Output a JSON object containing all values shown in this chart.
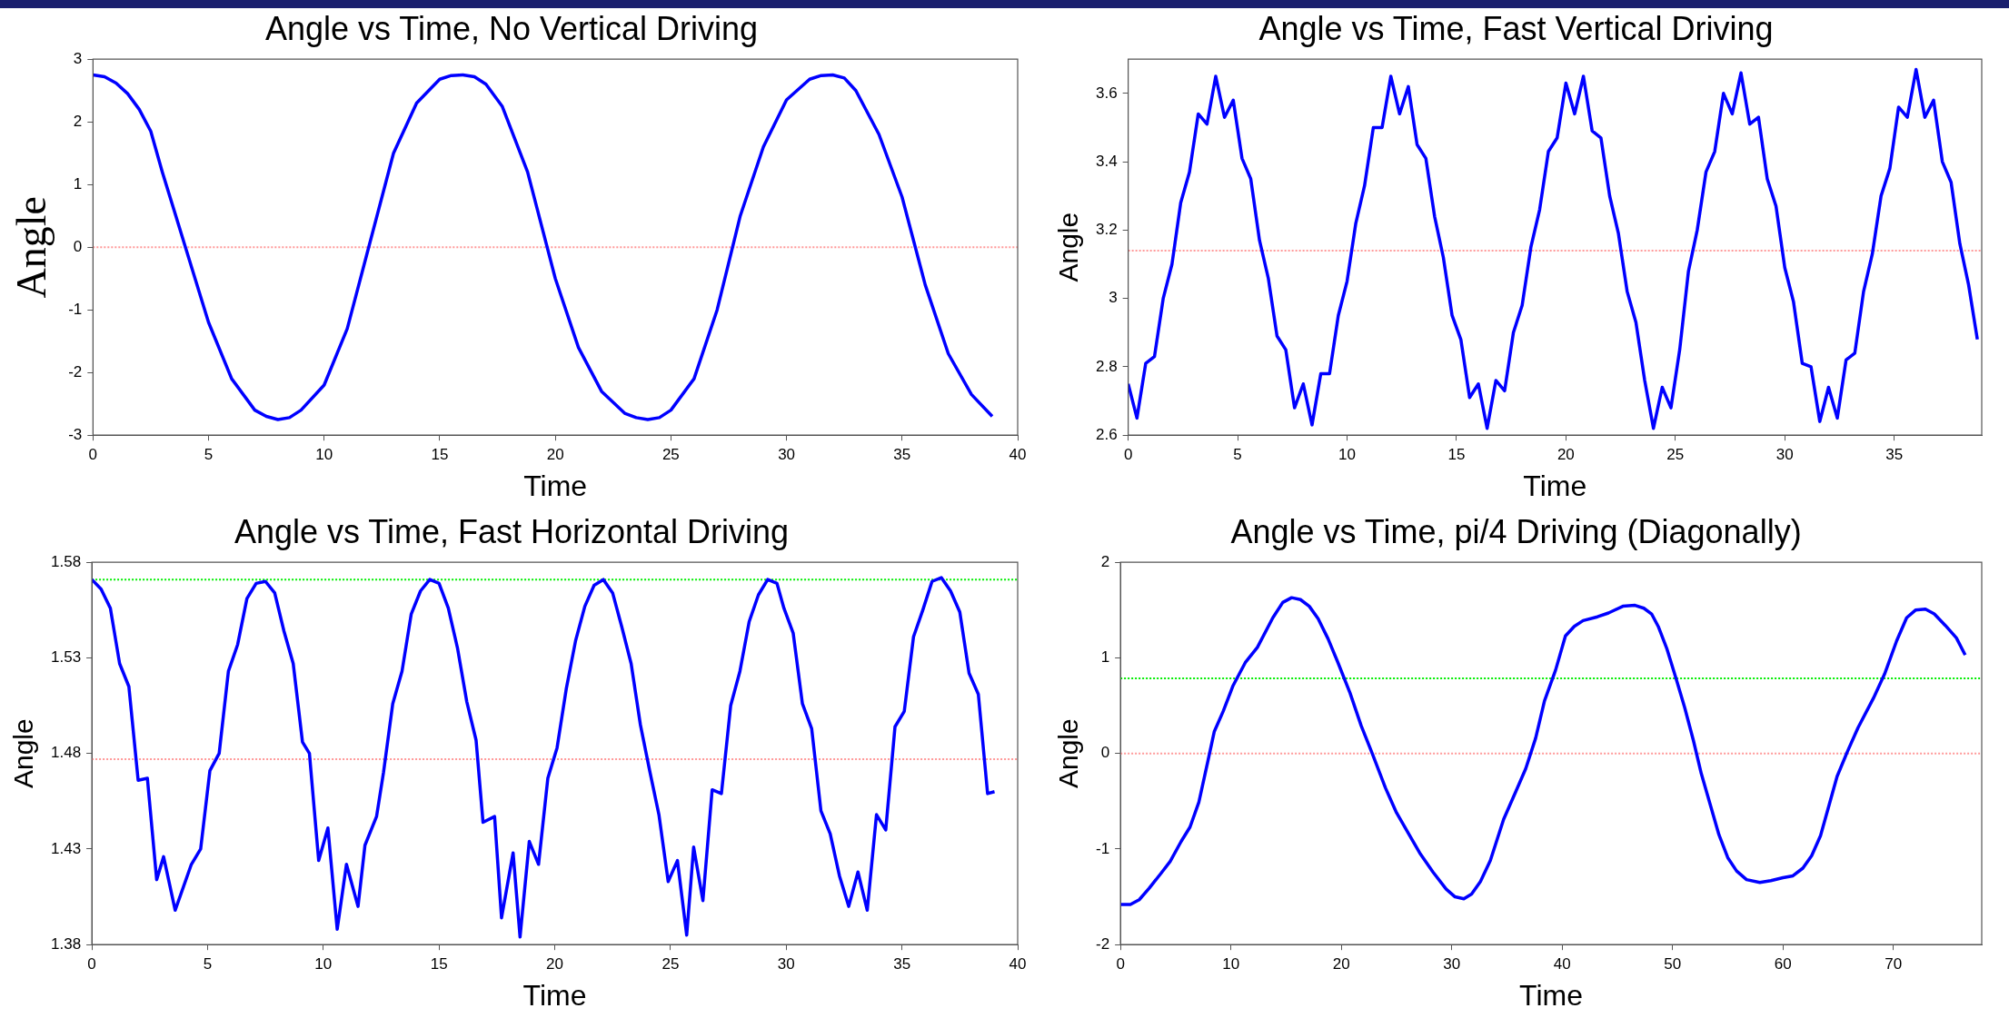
{
  "chart_data": [
    {
      "type": "line",
      "title": "Angle vs Time, No Vertical Driving",
      "xlabel": "Time",
      "ylabel": "Angle",
      "xlim": [
        0,
        40
      ],
      "ylim": [
        -3,
        3
      ],
      "xticks": [
        0,
        5,
        10,
        15,
        20,
        25,
        30,
        35,
        40
      ],
      "yticks": [
        -3,
        -2,
        -1,
        0,
        1,
        2,
        3
      ],
      "x": [
        0,
        0.5,
        1,
        1.5,
        2,
        2.5,
        3,
        3.5,
        4,
        5,
        6,
        7,
        7.5,
        8,
        8.5,
        9,
        10,
        11,
        12,
        13,
        14,
        15,
        15.5,
        16,
        16.5,
        17,
        17.7,
        18.8,
        20,
        21,
        22,
        23,
        23.5,
        24,
        24.5,
        25,
        26,
        27,
        28,
        29,
        30,
        31,
        31.5,
        32,
        32.5,
        33,
        34,
        35,
        36,
        37,
        38,
        38.9
      ],
      "series": [
        {
          "color": "#0000ff",
          "values": [
            2.75,
            2.72,
            2.62,
            2.45,
            2.2,
            1.85,
            1.2,
            0.6,
            0.0,
            -1.2,
            -2.1,
            -2.6,
            -2.7,
            -2.75,
            -2.72,
            -2.6,
            -2.2,
            -1.3,
            0.1,
            1.5,
            2.3,
            2.68,
            2.74,
            2.75,
            2.72,
            2.6,
            2.25,
            1.2,
            -0.5,
            -1.6,
            -2.3,
            -2.65,
            -2.72,
            -2.75,
            -2.72,
            -2.6,
            -2.1,
            -1.0,
            0.5,
            1.6,
            2.35,
            2.68,
            2.74,
            2.75,
            2.7,
            2.5,
            1.8,
            0.8,
            -0.6,
            -1.7,
            -2.35,
            -2.7
          ]
        }
      ],
      "ref_lines": [
        {
          "axis": "y",
          "value": 0,
          "color": "#ff9999",
          "line_style": "dotted"
        }
      ]
    },
    {
      "type": "line",
      "title": "Angle vs Time, Fast Vertical Driving",
      "xlabel": "Time",
      "ylabel": "Angle",
      "xlim": [
        0,
        39
      ],
      "ylim": [
        2.6,
        3.7
      ],
      "xticks": [
        0,
        5,
        10,
        15,
        20,
        25,
        30,
        35
      ],
      "yticks": [
        2.6,
        2.8,
        3,
        3.2,
        3.4,
        3.6
      ],
      "x": [
        0,
        0.4,
        0.8,
        1.2,
        1.6,
        2,
        2.4,
        2.8,
        3.2,
        3.6,
        4,
        4.4,
        4.8,
        5.2,
        5.6,
        6,
        6.4,
        6.8,
        7.2,
        7.6,
        8,
        8.4,
        8.8,
        9.2,
        9.6,
        10,
        10.4,
        10.8,
        11.2,
        11.6,
        12,
        12.4,
        12.8,
        13.2,
        13.6,
        14,
        14.4,
        14.8,
        15.2,
        15.6,
        16,
        16.4,
        16.8,
        17.2,
        17.6,
        18,
        18.4,
        18.8,
        19.2,
        19.6,
        20,
        20.4,
        20.8,
        21.2,
        21.6,
        22,
        22.4,
        22.8,
        23.2,
        23.6,
        24,
        24.4,
        24.8,
        25.2,
        25.6,
        26,
        26.4,
        26.8,
        27.2,
        27.6,
        28,
        28.4,
        28.8,
        29.2,
        29.6,
        30,
        30.4,
        30.8,
        31.2,
        31.6,
        32,
        32.4,
        32.8,
        33.2,
        33.6,
        34,
        34.4,
        34.8,
        35.2,
        35.6,
        36,
        36.4,
        36.8,
        37.2,
        37.6,
        38,
        38.4,
        38.8
      ],
      "series": [
        {
          "color": "#0000ff",
          "values": [
            2.75,
            2.65,
            2.81,
            2.83,
            3.0,
            3.1,
            3.28,
            3.37,
            3.54,
            3.51,
            3.65,
            3.53,
            3.58,
            3.41,
            3.35,
            3.17,
            3.06,
            2.89,
            2.85,
            2.68,
            2.75,
            2.63,
            2.78,
            2.78,
            2.95,
            3.05,
            3.22,
            3.33,
            3.5,
            3.5,
            3.65,
            3.54,
            3.62,
            3.45,
            3.41,
            3.24,
            3.12,
            2.95,
            2.88,
            2.71,
            2.75,
            2.62,
            2.76,
            2.73,
            2.9,
            2.98,
            3.15,
            3.26,
            3.43,
            3.47,
            3.63,
            3.54,
            3.65,
            3.49,
            3.47,
            3.3,
            3.19,
            3.02,
            2.93,
            2.76,
            2.62,
            2.74,
            2.68,
            2.85,
            3.08,
            3.2,
            3.37,
            3.43,
            3.6,
            3.54,
            3.66,
            3.51,
            3.53,
            3.35,
            3.27,
            3.09,
            2.99,
            2.81,
            2.8,
            2.64,
            2.74,
            2.65,
            2.82,
            2.84,
            3.02,
            3.13,
            3.3,
            3.38,
            3.56,
            3.53,
            3.67,
            3.53,
            3.58,
            3.4,
            3.34,
            3.16,
            3.04,
            2.88
          ]
        }
      ],
      "ref_lines": [
        {
          "axis": "y",
          "value": 3.14,
          "color": "#ff9999",
          "line_style": "dotted"
        }
      ]
    },
    {
      "type": "line",
      "title": "Angle vs Time, Fast Horizontal Driving",
      "xlabel": "Time",
      "ylabel": "Angle",
      "xlim": [
        0,
        40
      ],
      "ylim": [
        1.38,
        1.58
      ],
      "xticks": [
        0,
        5,
        10,
        15,
        20,
        25,
        30,
        35,
        40
      ],
      "yticks": [
        1.38,
        1.43,
        1.48,
        1.53,
        1.58
      ],
      "x": [
        0,
        0.4,
        0.8,
        1.2,
        1.6,
        2,
        2.4,
        2.8,
        3.1,
        3.6,
        4.3,
        4.7,
        5.1,
        5.5,
        5.9,
        6.3,
        6.7,
        7.1,
        7.5,
        7.9,
        8.3,
        8.7,
        9.1,
        9.4,
        9.8,
        10.2,
        10.6,
        11,
        11.5,
        11.8,
        12.3,
        12.6,
        13,
        13.4,
        13.8,
        14.2,
        14.6,
        15,
        15.4,
        15.8,
        16.2,
        16.6,
        16.9,
        17.4,
        17.7,
        18.2,
        18.5,
        18.9,
        19.3,
        19.7,
        20.1,
        20.5,
        20.9,
        21.3,
        21.7,
        22.1,
        22.5,
        22.9,
        23.3,
        23.7,
        24.1,
        24.5,
        24.9,
        25.3,
        25.7,
        26,
        26.4,
        26.8,
        27.2,
        27.6,
        28,
        28.4,
        28.8,
        29.2,
        29.6,
        29.9,
        30.3,
        30.7,
        31.1,
        31.5,
        31.9,
        32.3,
        32.7,
        33.1,
        33.5,
        33.9,
        34.3,
        34.7,
        35.1,
        35.5,
        35.9,
        36.3,
        36.7,
        37.1,
        37.5,
        37.9,
        38.3,
        38.7,
        39
      ],
      "series": [
        {
          "color": "#0000ff",
          "values": [
            1.571,
            1.566,
            1.556,
            1.527,
            1.515,
            1.466,
            1.467,
            1.414,
            1.426,
            1.398,
            1.422,
            1.43,
            1.471,
            1.48,
            1.523,
            1.537,
            1.561,
            1.569,
            1.57,
            1.564,
            1.544,
            1.527,
            1.486,
            1.48,
            1.424,
            1.441,
            1.388,
            1.422,
            1.4,
            1.432,
            1.447,
            1.47,
            1.506,
            1.523,
            1.553,
            1.565,
            1.571,
            1.569,
            1.556,
            1.535,
            1.507,
            1.487,
            1.444,
            1.447,
            1.394,
            1.428,
            1.384,
            1.434,
            1.422,
            1.467,
            1.483,
            1.514,
            1.539,
            1.557,
            1.568,
            1.571,
            1.564,
            1.546,
            1.527,
            1.495,
            1.471,
            1.448,
            1.413,
            1.424,
            1.385,
            1.431,
            1.403,
            1.461,
            1.459,
            1.505,
            1.523,
            1.549,
            1.563,
            1.571,
            1.569,
            1.556,
            1.543,
            1.506,
            1.493,
            1.45,
            1.438,
            1.416,
            1.4,
            1.418,
            1.398,
            1.448,
            1.44,
            1.494,
            1.502,
            1.541,
            1.555,
            1.57,
            1.572,
            1.565,
            1.554,
            1.522,
            1.511,
            1.459,
            1.46
          ]
        }
      ],
      "ref_lines": [
        {
          "axis": "y",
          "value": 1.571,
          "color": "#00ee00",
          "line_style": "dotted"
        },
        {
          "axis": "y",
          "value": 1.477,
          "color": "#ff9999",
          "line_style": "dotted"
        }
      ]
    },
    {
      "type": "line",
      "title": "Angle vs Time, pi/4 Driving (Diagonally)",
      "xlabel": "Time",
      "ylabel": "Angle",
      "xlim": [
        0,
        78
      ],
      "ylim": [
        -2,
        2
      ],
      "xticks": [
        0,
        10,
        20,
        30,
        40,
        50,
        60,
        70
      ],
      "yticks": [
        -2,
        -1,
        0,
        1,
        2
      ],
      "x": [
        0,
        0.9,
        1.7,
        2.6,
        3.7,
        4.5,
        5.5,
        6.3,
        7.1,
        7.9,
        8.5,
        9.3,
        10.2,
        11.3,
        12.4,
        13.8,
        14.7,
        15.5,
        16.3,
        17.1,
        17.9,
        18.8,
        19.7,
        20.8,
        21.8,
        22.8,
        24,
        25,
        26.1,
        27.1,
        28.3,
        29.5,
        30.3,
        31.1,
        31.8,
        32.6,
        33.5,
        34.7,
        35.8,
        36.7,
        37.6,
        38.4,
        39.4,
        40.3,
        41.1,
        41.9,
        43.2,
        44.2,
        45.5,
        46.6,
        47.4,
        48.1,
        48.7,
        49.5,
        50.3,
        51.1,
        51.9,
        52.6,
        53.4,
        54.2,
        55,
        55.8,
        56.7,
        57.9,
        58.9,
        60,
        60.9,
        61.8,
        62.6,
        63.4,
        64.2,
        64.9,
        65.8,
        66.8,
        68.2,
        69.2,
        70.3,
        71.2,
        72,
        72.9,
        73.7,
        74.7,
        75.7,
        76.5
      ],
      "series": [
        {
          "color": "#0000ff",
          "values": [
            -1.58,
            -1.58,
            -1.53,
            -1.41,
            -1.25,
            -1.13,
            -0.92,
            -0.77,
            -0.51,
            -0.09,
            0.23,
            0.44,
            0.71,
            0.95,
            1.11,
            1.42,
            1.58,
            1.63,
            1.61,
            1.54,
            1.41,
            1.2,
            0.95,
            0.63,
            0.29,
            0,
            -0.36,
            -0.62,
            -0.84,
            -1.04,
            -1.24,
            -1.42,
            -1.5,
            -1.52,
            -1.47,
            -1.34,
            -1.12,
            -0.69,
            -0.4,
            -0.16,
            0.16,
            0.55,
            0.87,
            1.23,
            1.33,
            1.39,
            1.43,
            1.47,
            1.54,
            1.55,
            1.52,
            1.46,
            1.33,
            1.09,
            0.79,
            0.48,
            0.13,
            -0.21,
            -0.53,
            -0.85,
            -1.09,
            -1.23,
            -1.32,
            -1.35,
            -1.33,
            -1.3,
            -1.28,
            -1.2,
            -1.07,
            -0.86,
            -0.53,
            -0.24,
            0.01,
            0.27,
            0.58,
            0.83,
            1.18,
            1.42,
            1.5,
            1.51,
            1.46,
            1.34,
            1.21,
            1.03
          ]
        }
      ],
      "ref_lines": [
        {
          "axis": "y",
          "value": 0.785,
          "color": "#00ee00",
          "line_style": "dotted"
        },
        {
          "axis": "y",
          "value": 0,
          "color": "#ff9999",
          "line_style": "dotted"
        }
      ]
    }
  ]
}
